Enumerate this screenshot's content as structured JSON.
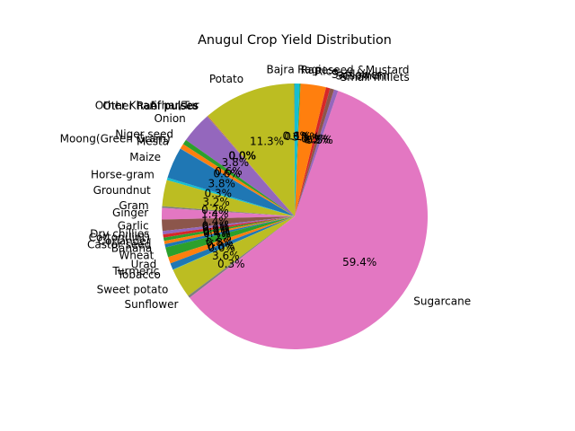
{
  "chart_data": {
    "type": "pie",
    "title": "Anugul Crop Yield Distribution",
    "start_angle": 90,
    "counterclock": true,
    "slices": [
      {
        "label": "Bajra",
        "pct": 0.05,
        "color": "#1f77b4"
      },
      {
        "label": "Potato",
        "pct": 11.3,
        "color": "#bcbd22"
      },
      {
        "label": "Arhar/Tur",
        "pct": 0.05,
        "color": "#ff7f0e"
      },
      {
        "label": "Other Kharif pulses",
        "pct": 0.05,
        "color": "#8c564b"
      },
      {
        "label": "Other Rabi pulses",
        "pct": 0.05,
        "color": "#7f7f7f"
      },
      {
        "label": "Onion",
        "pct": 3.8,
        "color": "#9467bd"
      },
      {
        "label": "Niger seed",
        "pct": 0.6,
        "color": "#2ca02c"
      },
      {
        "label": "Moong(Green Gram)",
        "pct": 0.6,
        "color": "#ff7f0e"
      },
      {
        "label": "Mesta",
        "pct": 0.05,
        "color": "#7f7f7f"
      },
      {
        "label": "Maize",
        "pct": 3.8,
        "color": "#1f77b4"
      },
      {
        "label": "Horse-gram",
        "pct": 0.3,
        "color": "#17becf"
      },
      {
        "label": "Groundnut",
        "pct": 3.2,
        "color": "#bcbd22"
      },
      {
        "label": "Gram",
        "pct": 0.2,
        "color": "#7f7f7f"
      },
      {
        "label": "Ginger",
        "pct": 1.4,
        "color": "#e377c2"
      },
      {
        "label": "Garlic",
        "pct": 1.4,
        "color": "#8c564b"
      },
      {
        "label": "Dry chillies",
        "pct": 0.4,
        "color": "#9467bd"
      },
      {
        "label": "Cotton(lint)",
        "pct": 0.4,
        "color": "#d62728"
      },
      {
        "label": "Coriander",
        "pct": 0.4,
        "color": "#2ca02c"
      },
      {
        "label": "Castor seed",
        "pct": 0.4,
        "color": "#ff7f0e"
      },
      {
        "label": "Banana",
        "pct": 0.4,
        "color": "#1f77b4"
      },
      {
        "label": "Wheat",
        "pct": 1.2,
        "color": "#2ca02c"
      },
      {
        "label": "Urad",
        "pct": 0.8,
        "color": "#ff7f0e"
      },
      {
        "label": "Turmeric",
        "pct": 0.8,
        "color": "#1f77b4"
      },
      {
        "label": "Tobacco",
        "pct": 0.05,
        "color": "#17becf"
      },
      {
        "label": "Sweet potato",
        "pct": 3.6,
        "color": "#bcbd22"
      },
      {
        "label": "Sunflower",
        "pct": 0.3,
        "color": "#7f7f7f"
      },
      {
        "label": "Sugarcane",
        "pct": 59.4,
        "color": "#e377c2"
      },
      {
        "label": "Small millets",
        "pct": 0.5,
        "color": "#9467bd"
      },
      {
        "label": "Sesamum",
        "pct": 0.5,
        "color": "#8c564b"
      },
      {
        "label": "Safflower",
        "pct": 0.5,
        "color": "#d62728"
      },
      {
        "label": "Rice",
        "pct": 3.1,
        "color": "#ff7f0e"
      },
      {
        "label": "Rapeseed &Mustard",
        "pct": 0.1,
        "color": "#2ca02c"
      },
      {
        "label": "Ragi",
        "pct": 0.6,
        "color": "#17becf"
      }
    ],
    "pct_labels_shown": [
      {
        "slice": 1,
        "text": "11.3%"
      },
      {
        "slice": 2,
        "text": "0.0%"
      },
      {
        "slice": 3,
        "text": "0.0%"
      },
      {
        "slice": 4,
        "text": "0.0%"
      },
      {
        "slice": 5,
        "text": "3.8%"
      },
      {
        "slice": 6,
        "text": "0.6%"
      },
      {
        "slice": 7,
        "text": "0.6%"
      },
      {
        "slice": 9,
        "text": "3.8%"
      },
      {
        "slice": 10,
        "text": "0.3%"
      },
      {
        "slice": 11,
        "text": "3.2%"
      },
      {
        "slice": 12,
        "text": "0.2%"
      },
      {
        "slice": 13,
        "text": "1.4%"
      },
      {
        "slice": 14,
        "text": "1.4%"
      },
      {
        "slice": 15,
        "text": "0.4%"
      },
      {
        "slice": 16,
        "text": "0.4%"
      },
      {
        "slice": 17,
        "text": "0.4%"
      },
      {
        "slice": 18,
        "text": "0.4%"
      },
      {
        "slice": 19,
        "text": "0.4%"
      },
      {
        "slice": 20,
        "text": "1.2%"
      },
      {
        "slice": 21,
        "text": "0.8%"
      },
      {
        "slice": 22,
        "text": "0.8%"
      },
      {
        "slice": 23,
        "text": "0.0%"
      },
      {
        "slice": 24,
        "text": "3.6%"
      },
      {
        "slice": 25,
        "text": "0.3%"
      },
      {
        "slice": 26,
        "text": "59.4%"
      },
      {
        "slice": 27,
        "text": "0.5%"
      },
      {
        "slice": 28,
        "text": "0.5%"
      },
      {
        "slice": 29,
        "text": "0.5%"
      },
      {
        "slice": 30,
        "text": "3.1%"
      },
      {
        "slice": 31,
        "text": "0.1%"
      },
      {
        "slice": 32,
        "text": "0.6%"
      }
    ]
  }
}
